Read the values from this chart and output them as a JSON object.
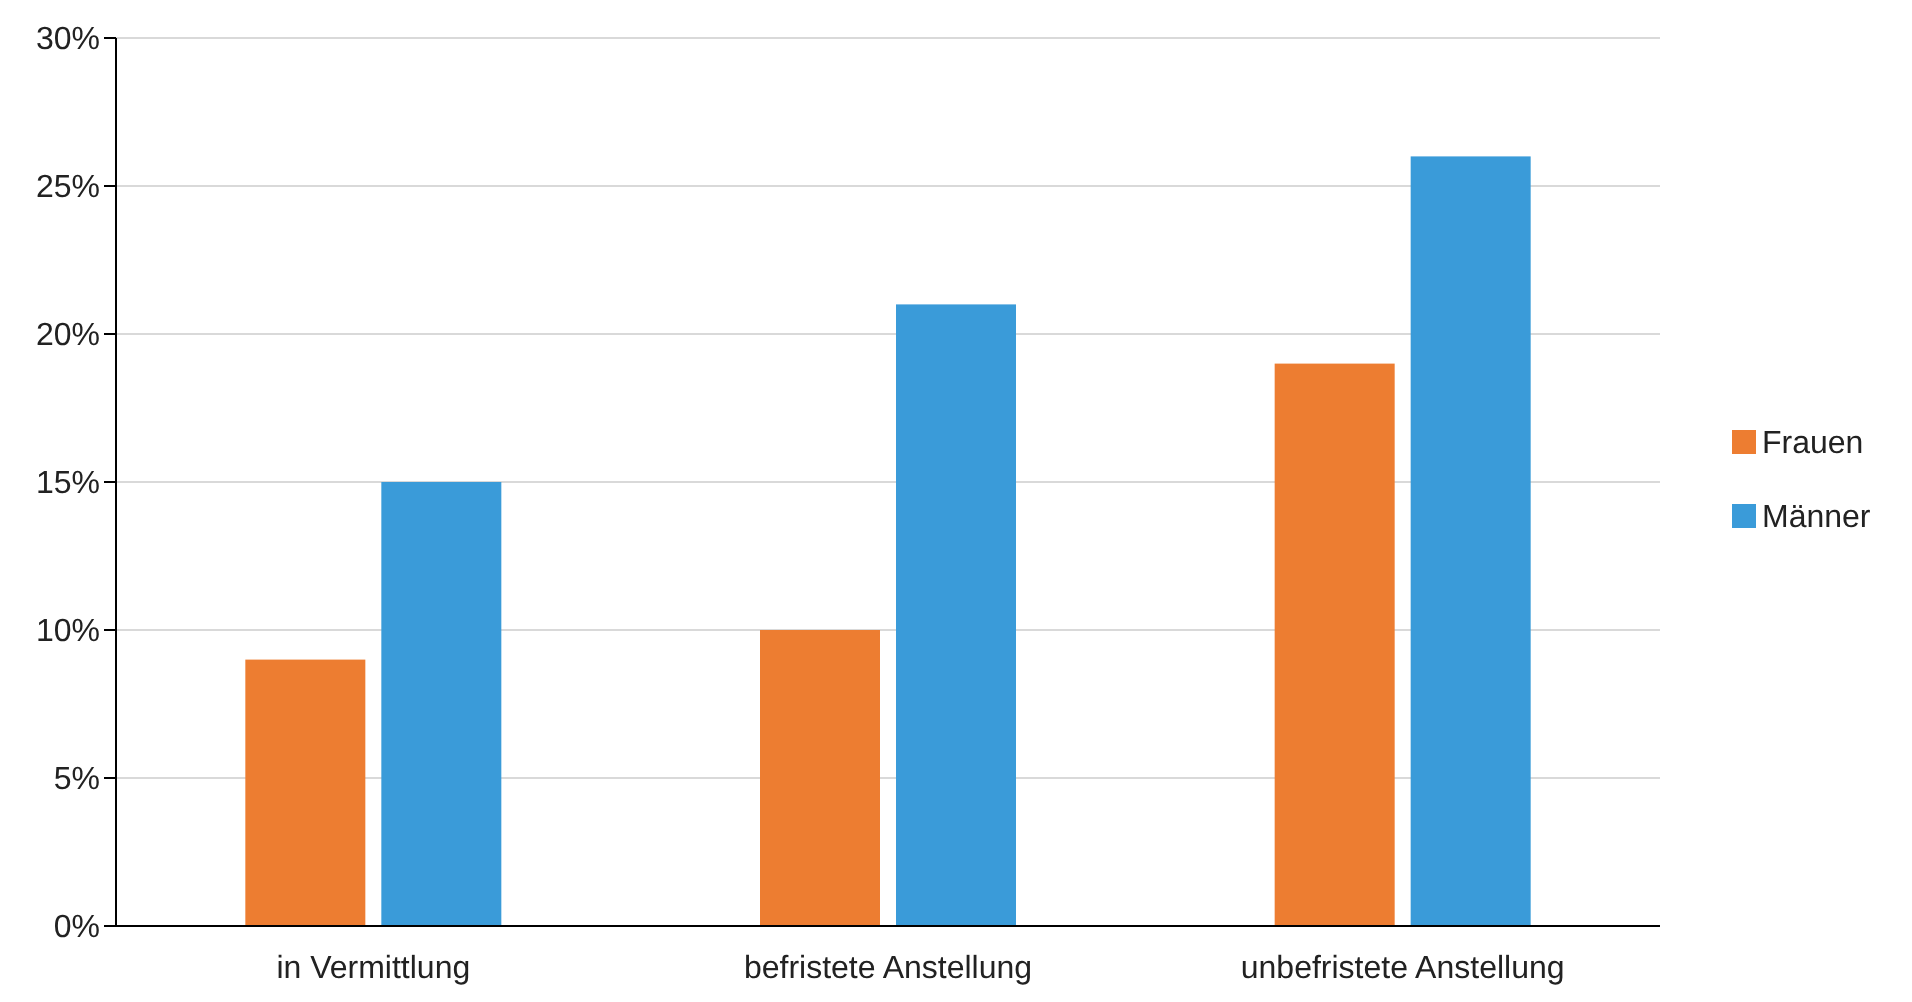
{
  "chart_data": {
    "type": "bar",
    "categories": [
      "in Vermittlung",
      "befristete Anstellung",
      "unbefristete Anstellung"
    ],
    "series": [
      {
        "name": "Frauen",
        "color": "#ed7d31",
        "values": [
          9,
          10,
          19
        ]
      },
      {
        "name": "Männer",
        "color": "#3a9bd9",
        "values": [
          15,
          21,
          26
        ]
      }
    ],
    "ylim": [
      0,
      30
    ],
    "yticks": [
      {
        "value": 0,
        "label": "0%"
      },
      {
        "value": 5,
        "label": "5%"
      },
      {
        "value": 10,
        "label": "10%"
      },
      {
        "value": 15,
        "label": "15%"
      },
      {
        "value": 20,
        "label": "20%"
      },
      {
        "value": 25,
        "label": "25%"
      },
      {
        "value": 30,
        "label": "30%"
      }
    ],
    "grid": "y",
    "legend": "right"
  }
}
